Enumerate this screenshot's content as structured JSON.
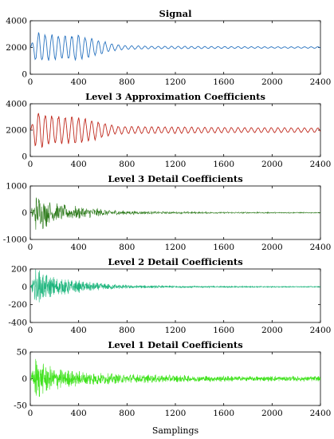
{
  "chart_data": [
    {
      "type": "line",
      "title": "Signal",
      "xlabel": "",
      "ylabel": "",
      "xlim": [
        0,
        2400
      ],
      "ylim": [
        0,
        4000
      ],
      "xticks": [
        "0",
        "400",
        "800",
        "1200",
        "1600",
        "2000",
        "2400"
      ],
      "yticks": [
        "0",
        "2000",
        "4000"
      ],
      "color": "#2a74c0",
      "series": [
        {
          "x": [
            0,
            50,
            100,
            150,
            200,
            300,
            400,
            500,
            600,
            700,
            800,
            1000,
            1200,
            1400,
            1600,
            1800,
            2000,
            2200,
            2400
          ],
          "amplitude": [
            0,
            1200,
            1100,
            1050,
            1000,
            950,
            1000,
            750,
            500,
            250,
            150,
            100,
            100,
            90,
            80,
            70,
            60,
            60,
            60
          ],
          "mean": [
            2000,
            2000,
            2000,
            2000,
            2000,
            2000,
            2000,
            2000,
            2000,
            2000,
            2000,
            2000,
            2000,
            2000,
            2000,
            2000,
            2000,
            2000,
            2000
          ]
        }
      ]
    },
    {
      "type": "line",
      "title": "Level 3 Approximation Coefficients",
      "xlabel": "",
      "ylabel": "",
      "xlim": [
        0,
        2400
      ],
      "ylim": [
        0,
        4000
      ],
      "xticks": [
        "0",
        "400",
        "800",
        "1200",
        "1600",
        "2000",
        "2400"
      ],
      "yticks": [
        "0",
        "2000",
        "4000"
      ],
      "color": "#c02a1e",
      "series": [
        {
          "x": [
            0,
            50,
            100,
            150,
            200,
            300,
            400,
            500,
            600,
            700,
            800,
            1000,
            1200,
            1400,
            1600,
            1800,
            2000,
            2200,
            2400
          ],
          "amplitude": [
            0,
            1500,
            1400,
            1250,
            1150,
            1050,
            1100,
            850,
            600,
            350,
            300,
            280,
            260,
            240,
            220,
            200,
            200,
            190,
            180
          ],
          "mean": [
            2000,
            2000,
            2000,
            2000,
            2000,
            2000,
            2000,
            2000,
            2000,
            2000,
            2000,
            2000,
            2000,
            2000,
            2000,
            2000,
            2000,
            2000,
            2000
          ]
        }
      ]
    },
    {
      "type": "line",
      "title": "Level 3 Detail Coefficients",
      "xlabel": "",
      "ylabel": "",
      "xlim": [
        0,
        2400
      ],
      "ylim": [
        -1000,
        1000
      ],
      "xticks": [
        "0",
        "400",
        "800",
        "1200",
        "1600",
        "2000",
        "2400"
      ],
      "yticks": [
        "-1000",
        "0",
        "1000"
      ],
      "color": "#2c7a1a",
      "series": [
        {
          "x": [
            0,
            50,
            100,
            150,
            200,
            300,
            400,
            500,
            600,
            700,
            800,
            1000,
            1200,
            1400,
            1600,
            1800,
            2000,
            2200,
            2400
          ],
          "amplitude": [
            0,
            750,
            650,
            500,
            400,
            300,
            250,
            200,
            150,
            110,
            80,
            50,
            40,
            35,
            30,
            28,
            25,
            22,
            20
          ],
          "mean": [
            0,
            0,
            0,
            0,
            0,
            0,
            0,
            0,
            0,
            0,
            0,
            0,
            0,
            0,
            0,
            0,
            0,
            0,
            0
          ]
        }
      ]
    },
    {
      "type": "line",
      "title": "Level 2 Detail Coefficients",
      "xlabel": "",
      "ylabel": "",
      "xlim": [
        0,
        2400
      ],
      "ylim": [
        -400,
        200
      ],
      "xticks": [
        "0",
        "400",
        "800",
        "1200",
        "1600",
        "2000",
        "2400"
      ],
      "yticks": [
        "-400",
        "-200",
        "0",
        "200"
      ],
      "color": "#1fb67e",
      "series": [
        {
          "x": [
            0,
            50,
            100,
            150,
            200,
            300,
            400,
            500,
            600,
            700,
            800,
            1000,
            1200,
            1400,
            1600,
            1800,
            2000,
            2200,
            2400
          ],
          "amplitude": [
            0,
            230,
            170,
            140,
            120,
            90,
            70,
            55,
            40,
            30,
            22,
            15,
            12,
            10,
            9,
            8,
            7,
            6,
            6
          ],
          "mean": [
            0,
            0,
            0,
            0,
            0,
            0,
            0,
            0,
            0,
            0,
            0,
            0,
            0,
            0,
            0,
            0,
            0,
            0,
            0
          ]
        }
      ]
    },
    {
      "type": "line",
      "title": "Level 1 Detail Coefficients",
      "xlabel": "Samplings",
      "ylabel": "",
      "xlim": [
        0,
        2400
      ],
      "ylim": [
        -50,
        50
      ],
      "xticks": [
        "0",
        "400",
        "800",
        "1200",
        "1600",
        "2000",
        "2400"
      ],
      "yticks": [
        "-50",
        "0",
        "50"
      ],
      "color": "#3fe21c",
      "series": [
        {
          "x": [
            0,
            50,
            100,
            150,
            200,
            300,
            400,
            500,
            600,
            700,
            800,
            1000,
            1200,
            1400,
            1600,
            1800,
            2000,
            2200,
            2400
          ],
          "amplitude": [
            0,
            45,
            30,
            26,
            22,
            18,
            15,
            13,
            11,
            10,
            9,
            8,
            7,
            6,
            6,
            5,
            5,
            5,
            5
          ],
          "mean": [
            0,
            0,
            0,
            0,
            0,
            0,
            0,
            0,
            0,
            0,
            0,
            0,
            0,
            0,
            0,
            0,
            0,
            0,
            0
          ]
        }
      ]
    }
  ]
}
